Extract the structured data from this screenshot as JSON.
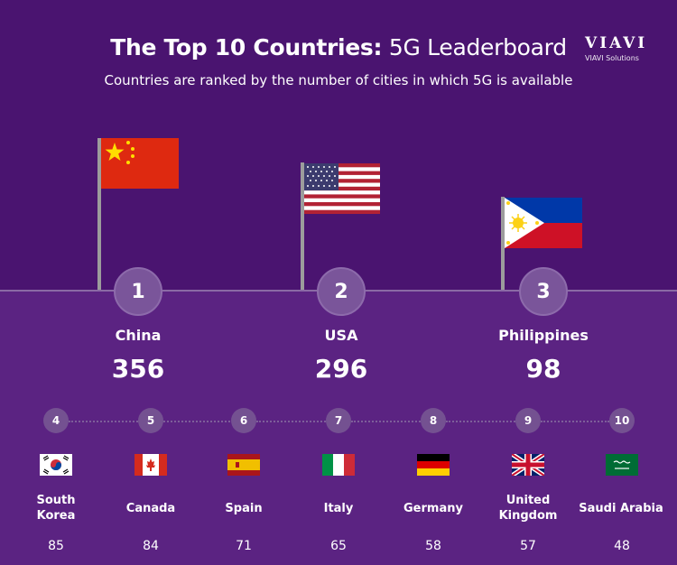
{
  "header": {
    "title_bold": "The Top 10 Countries:",
    "title_light": "5G Leaderboard",
    "subtitle": "Countries are ranked by the number of cities in which 5G is available"
  },
  "logo": {
    "mark": "VIAVI",
    "sub": "VIAVI Solutions"
  },
  "podium": [
    {
      "rank": "1",
      "name": "China",
      "value": "356"
    },
    {
      "rank": "2",
      "name": "USA",
      "value": "296"
    },
    {
      "rank": "3",
      "name": "Philippines",
      "value": "98"
    }
  ],
  "others": [
    {
      "rank": "4",
      "name": "South Korea",
      "value": "85"
    },
    {
      "rank": "5",
      "name": "Canada",
      "value": "84"
    },
    {
      "rank": "6",
      "name": "Spain",
      "value": "71"
    },
    {
      "rank": "7",
      "name": "Italy",
      "value": "65"
    },
    {
      "rank": "8",
      "name": "Germany",
      "value": "58"
    },
    {
      "rank": "9",
      "name": "United Kingdom",
      "value": "57"
    },
    {
      "rank": "10",
      "name": "Saudi Arabia",
      "value": "48"
    }
  ],
  "colors": {
    "background": "#4a1470",
    "lower_panel": "#5b2382",
    "rank_circle": "#7a559a"
  }
}
